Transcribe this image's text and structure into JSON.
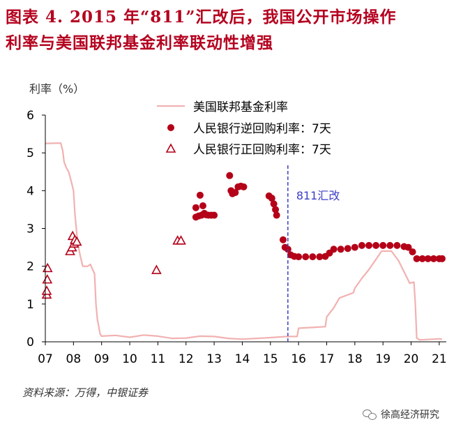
{
  "figure": {
    "title": "图表4. 2015年“811”汇改后，我国公开市场操作利率与美国联邦基金利率联动性增强",
    "title_line1": "图表 4.  2015 年“811”汇改后，我国公开市场操作",
    "title_line2": "利率与美国联邦基金利率联动性增强",
    "source": "资料来源：万得，中银证券",
    "brand": "徐高经济研究"
  },
  "colors": {
    "title": "#b4001e",
    "fed_line": "#f2b1b1",
    "reverse_repo": "#b40018",
    "repo": "#b40018",
    "marker_line": "#3c3cc8",
    "axis": "#000000"
  },
  "chart_data": {
    "type": "line",
    "ylabel": "利率（%）",
    "xlabel": "",
    "ylim": [
      0,
      6
    ],
    "xlim": [
      2007.0,
      2021.25
    ],
    "yticks": [
      0,
      1,
      2,
      3,
      4,
      5,
      6
    ],
    "xticks": [
      {
        "value": 2007,
        "label": "07"
      },
      {
        "value": 2008,
        "label": "08"
      },
      {
        "value": 2009,
        "label": "09"
      },
      {
        "value": 2010,
        "label": "10"
      },
      {
        "value": 2011,
        "label": "11"
      },
      {
        "value": 2012,
        "label": "12"
      },
      {
        "value": 2013,
        "label": "13"
      },
      {
        "value": 2014,
        "label": "14"
      },
      {
        "value": 2015,
        "label": "15"
      },
      {
        "value": 2016,
        "label": "16"
      },
      {
        "value": 2017,
        "label": "17"
      },
      {
        "value": 2018,
        "label": "18"
      },
      {
        "value": 2019,
        "label": "19"
      },
      {
        "value": 2020,
        "label": "20"
      },
      {
        "value": 2021,
        "label": "21"
      }
    ],
    "legend_position": "top-right",
    "annotation": {
      "label": "811汇改",
      "x": 2015.62
    },
    "series": [
      {
        "name": "美国联邦基金利率",
        "kind": "line",
        "points": [
          [
            2007.0,
            5.25
          ],
          [
            2007.55,
            5.26
          ],
          [
            2007.62,
            5.05
          ],
          [
            2007.67,
            4.75
          ],
          [
            2007.75,
            4.6
          ],
          [
            2007.83,
            4.5
          ],
          [
            2007.92,
            4.25
          ],
          [
            2008.0,
            4.0
          ],
          [
            2008.05,
            3.4
          ],
          [
            2008.1,
            3.0
          ],
          [
            2008.15,
            2.6
          ],
          [
            2008.25,
            2.25
          ],
          [
            2008.33,
            2.0
          ],
          [
            2008.5,
            2.0
          ],
          [
            2008.6,
            2.05
          ],
          [
            2008.75,
            1.8
          ],
          [
            2008.8,
            1.0
          ],
          [
            2008.85,
            0.6
          ],
          [
            2008.95,
            0.2
          ],
          [
            2009.0,
            0.15
          ],
          [
            2009.5,
            0.17
          ],
          [
            2010.0,
            0.12
          ],
          [
            2010.5,
            0.18
          ],
          [
            2011.0,
            0.15
          ],
          [
            2011.5,
            0.09
          ],
          [
            2012.0,
            0.1
          ],
          [
            2012.5,
            0.15
          ],
          [
            2013.0,
            0.14
          ],
          [
            2013.5,
            0.09
          ],
          [
            2014.0,
            0.07
          ],
          [
            2014.5,
            0.09
          ],
          [
            2015.0,
            0.11
          ],
          [
            2015.6,
            0.14
          ],
          [
            2015.95,
            0.14
          ],
          [
            2016.0,
            0.36
          ],
          [
            2016.5,
            0.38
          ],
          [
            2016.95,
            0.4
          ],
          [
            2017.0,
            0.66
          ],
          [
            2017.25,
            0.9
          ],
          [
            2017.45,
            1.16
          ],
          [
            2017.95,
            1.3
          ],
          [
            2018.0,
            1.42
          ],
          [
            2018.25,
            1.68
          ],
          [
            2018.5,
            1.91
          ],
          [
            2018.75,
            2.18
          ],
          [
            2018.95,
            2.4
          ],
          [
            2019.3,
            2.4
          ],
          [
            2019.55,
            2.15
          ],
          [
            2019.75,
            1.85
          ],
          [
            2019.95,
            1.55
          ],
          [
            2020.1,
            1.58
          ],
          [
            2020.15,
            1.0
          ],
          [
            2020.2,
            0.1
          ],
          [
            2020.3,
            0.05
          ],
          [
            2021.0,
            0.08
          ],
          [
            2021.1,
            0.07
          ]
        ]
      },
      {
        "name": "人民银行逆回购利率：7天",
        "kind": "scatter-circle",
        "points": [
          [
            2012.35,
            3.55
          ],
          [
            2012.35,
            3.3
          ],
          [
            2012.45,
            3.33
          ],
          [
            2012.5,
            3.88
          ],
          [
            2012.55,
            3.35
          ],
          [
            2012.6,
            3.6
          ],
          [
            2012.65,
            3.4
          ],
          [
            2012.72,
            3.36
          ],
          [
            2012.8,
            3.35
          ],
          [
            2012.9,
            3.35
          ],
          [
            2013.0,
            3.35
          ],
          [
            2013.55,
            4.4
          ],
          [
            2013.6,
            4.0
          ],
          [
            2013.65,
            3.92
          ],
          [
            2013.75,
            3.95
          ],
          [
            2013.85,
            4.1
          ],
          [
            2013.95,
            4.12
          ],
          [
            2014.05,
            4.1
          ],
          [
            2014.95,
            3.86
          ],
          [
            2015.05,
            3.8
          ],
          [
            2015.12,
            3.65
          ],
          [
            2015.18,
            3.5
          ],
          [
            2015.22,
            3.35
          ],
          [
            2015.45,
            2.7
          ],
          [
            2015.52,
            2.5
          ],
          [
            2015.62,
            2.45
          ],
          [
            2015.72,
            2.3
          ],
          [
            2015.85,
            2.26
          ],
          [
            2016.0,
            2.25
          ],
          [
            2016.25,
            2.25
          ],
          [
            2016.5,
            2.25
          ],
          [
            2016.75,
            2.25
          ],
          [
            2016.95,
            2.26
          ],
          [
            2017.1,
            2.35
          ],
          [
            2017.25,
            2.45
          ],
          [
            2017.5,
            2.45
          ],
          [
            2017.75,
            2.47
          ],
          [
            2018.0,
            2.5
          ],
          [
            2018.25,
            2.55
          ],
          [
            2018.5,
            2.55
          ],
          [
            2018.75,
            2.55
          ],
          [
            2019.0,
            2.55
          ],
          [
            2019.25,
            2.55
          ],
          [
            2019.5,
            2.55
          ],
          [
            2019.75,
            2.52
          ],
          [
            2019.9,
            2.5
          ],
          [
            2020.05,
            2.38
          ],
          [
            2020.2,
            2.2
          ],
          [
            2020.4,
            2.2
          ],
          [
            2020.6,
            2.2
          ],
          [
            2020.8,
            2.2
          ],
          [
            2021.0,
            2.2
          ],
          [
            2021.1,
            2.2
          ]
        ]
      },
      {
        "name": "人民银行正回购利率：7天",
        "kind": "scatter-triangle",
        "points": [
          [
            2007.05,
            1.25
          ],
          [
            2007.05,
            1.35
          ],
          [
            2007.07,
            1.65
          ],
          [
            2007.08,
            1.95
          ],
          [
            2007.88,
            2.4
          ],
          [
            2007.95,
            2.5
          ],
          [
            2007.97,
            2.8
          ],
          [
            2008.02,
            2.6
          ],
          [
            2008.05,
            2.7
          ],
          [
            2008.12,
            2.65
          ],
          [
            2010.95,
            1.9
          ],
          [
            2011.7,
            2.68
          ],
          [
            2011.82,
            2.68
          ]
        ]
      }
    ]
  }
}
